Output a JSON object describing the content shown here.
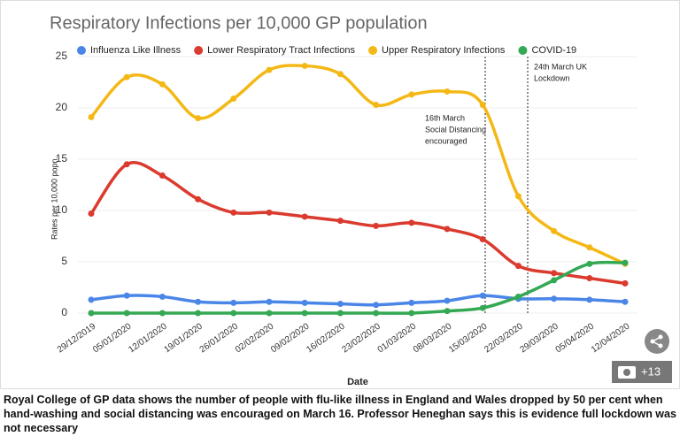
{
  "chart_data": {
    "type": "line",
    "title": "Respiratory Infections per 10,000 GP population",
    "x_label": "Date",
    "y_label": "Rates per 10,000 popn.",
    "categories": [
      "29/12/2019",
      "05/01/2020",
      "12/01/2020",
      "19/01/2020",
      "26/01/2020",
      "02/02/2020",
      "09/02/2020",
      "16/02/2020",
      "23/02/2020",
      "01/03/2020",
      "08/03/2020",
      "15/03/2020",
      "22/03/2020",
      "29/03/2020",
      "05/04/2020",
      "12/04/2020"
    ],
    "series": [
      {
        "name": "Influenza Like Illness",
        "color": "#4a86e8",
        "values": [
          1.3,
          1.7,
          1.6,
          1.1,
          1.0,
          1.1,
          1.0,
          0.9,
          0.8,
          1.0,
          1.2,
          1.7,
          1.4,
          1.4,
          1.3,
          1.1
        ]
      },
      {
        "name": "Lower Respiratory Tract Infections",
        "color": "#db3a2e",
        "values": [
          9.7,
          14.5,
          13.4,
          11.1,
          9.8,
          9.8,
          9.4,
          9.0,
          8.5,
          8.8,
          8.2,
          7.2,
          4.6,
          3.9,
          3.4,
          2.9
        ]
      },
      {
        "name": "Upper Respiratory Infections",
        "color": "#f4b816",
        "values": [
          19.1,
          23.0,
          22.3,
          19.0,
          20.9,
          23.7,
          24.1,
          23.3,
          20.3,
          21.3,
          21.6,
          20.3,
          11.4,
          8.0,
          6.4,
          4.8
        ]
      },
      {
        "name": "COVID-19",
        "color": "#34a853",
        "values": [
          0,
          0,
          0,
          0,
          0,
          0,
          0,
          0,
          0,
          0,
          0.2,
          0.5,
          1.6,
          3.2,
          4.8,
          4.9
        ]
      }
    ],
    "ylim": [
      0,
      25
    ],
    "yticks": [
      0,
      5,
      10,
      15,
      20,
      25
    ],
    "grid": true,
    "legend_position": "top",
    "annotations": [
      {
        "lines": [
          "16th March",
          "Social Distancing",
          "encouraged"
        ]
      },
      {
        "lines": [
          "24th March UK",
          "Lockdown"
        ]
      }
    ]
  },
  "caption": "Royal College of GP data shows the number of people with flu-like illness in England and Wales dropped by 50 per cent when hand-washing and social distancing was encouraged on March 16. Professor Heneghan says this is evidence full lockdown was not necessary",
  "photo_count": "+13"
}
